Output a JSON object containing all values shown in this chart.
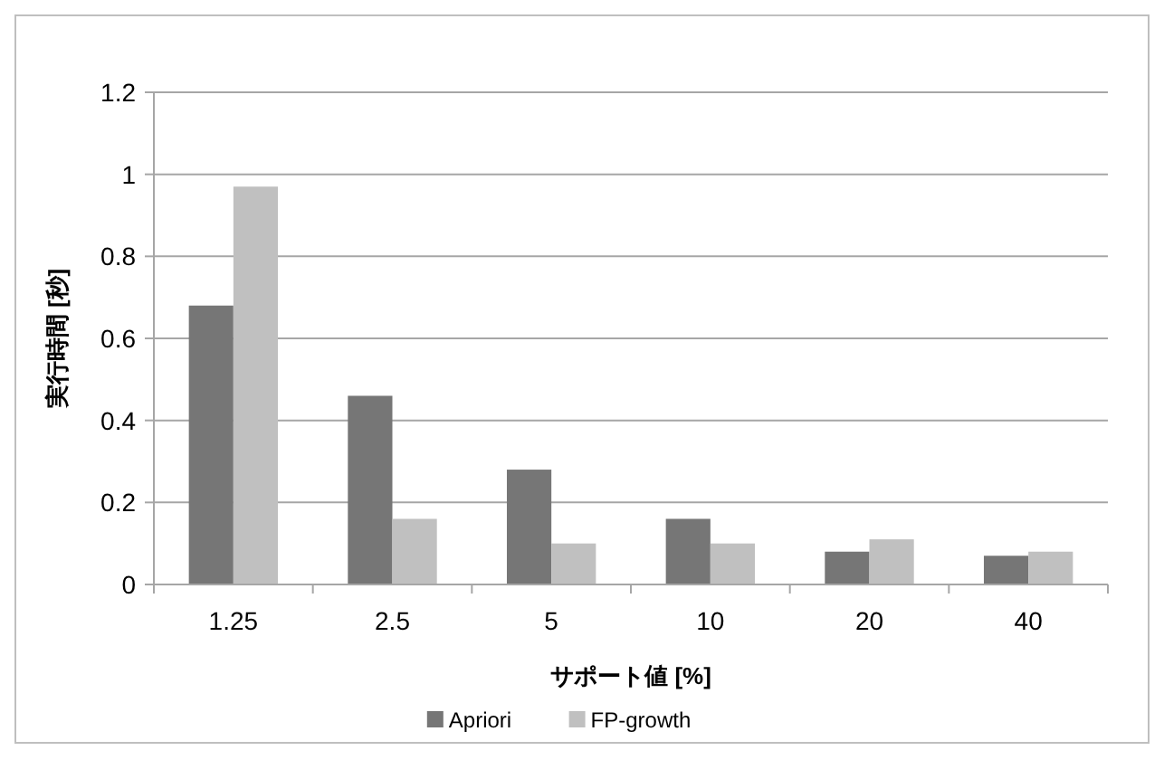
{
  "chart_data": {
    "type": "bar",
    "xlabel": "サポート値 [%]",
    "ylabel": "実行時間 [秒]",
    "categories": [
      "1.25",
      "2.5",
      "5",
      "10",
      "20",
      "40"
    ],
    "series": [
      {
        "name": "Apriori",
        "color": "#767676",
        "values": [
          0.68,
          0.46,
          0.28,
          0.16,
          0.08,
          0.07
        ]
      },
      {
        "name": "FP-growth",
        "color": "#c0c0c0",
        "values": [
          0.97,
          0.16,
          0.1,
          0.1,
          0.11,
          0.08
        ]
      }
    ],
    "ylim": [
      0,
      1.2
    ],
    "yticks": [
      0,
      0.2,
      0.4,
      0.6,
      0.8,
      1,
      1.2
    ],
    "grid": "y",
    "legend": "bottom"
  }
}
